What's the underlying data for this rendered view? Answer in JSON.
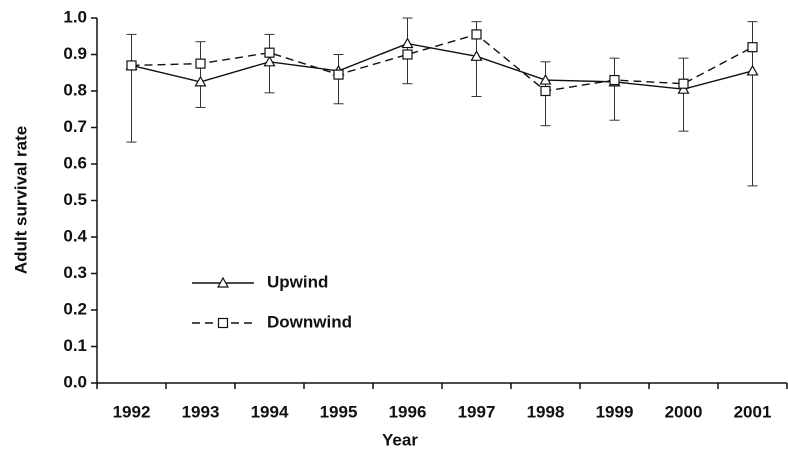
{
  "chart_data": {
    "type": "line",
    "x_label": "Year",
    "y_label": "Adult survival rate",
    "categories": [
      "1992",
      "1993",
      "1994",
      "1995",
      "1996",
      "1997",
      "1998",
      "1999",
      "2000",
      "2001"
    ],
    "series": [
      {
        "name": "Upwind",
        "color": "#111111",
        "dash": "solid",
        "marker": "triangle",
        "values": [
          0.87,
          0.825,
          0.88,
          0.855,
          0.93,
          0.895,
          0.83,
          0.825,
          0.805,
          0.855
        ],
        "lower": [
          0.66,
          0.755,
          0.795,
          0.765,
          0.82,
          0.785,
          0.705,
          0.72,
          0.69,
          0.54
        ],
        "upper": [
          0.955,
          0.935,
          0.955,
          0.9,
          1.0,
          0.99,
          0.88,
          0.89,
          0.89,
          0.99
        ]
      },
      {
        "name": "Downwind",
        "color": "#111111",
        "dash": "dashed",
        "marker": "square",
        "values": [
          0.87,
          0.875,
          0.905,
          0.845,
          0.9,
          0.955,
          0.8,
          0.83,
          0.82,
          0.92
        ]
      }
    ],
    "ylim": [
      0,
      1
    ],
    "yticks": [
      {
        "value": 0,
        "label": "0.0"
      },
      0.1,
      0.2,
      0.3,
      0.4,
      0.5,
      0.6,
      0.7,
      0.8,
      0.9,
      {
        "value": 1,
        "label": "1.0"
      }
    ],
    "legend_position": "lower left"
  }
}
